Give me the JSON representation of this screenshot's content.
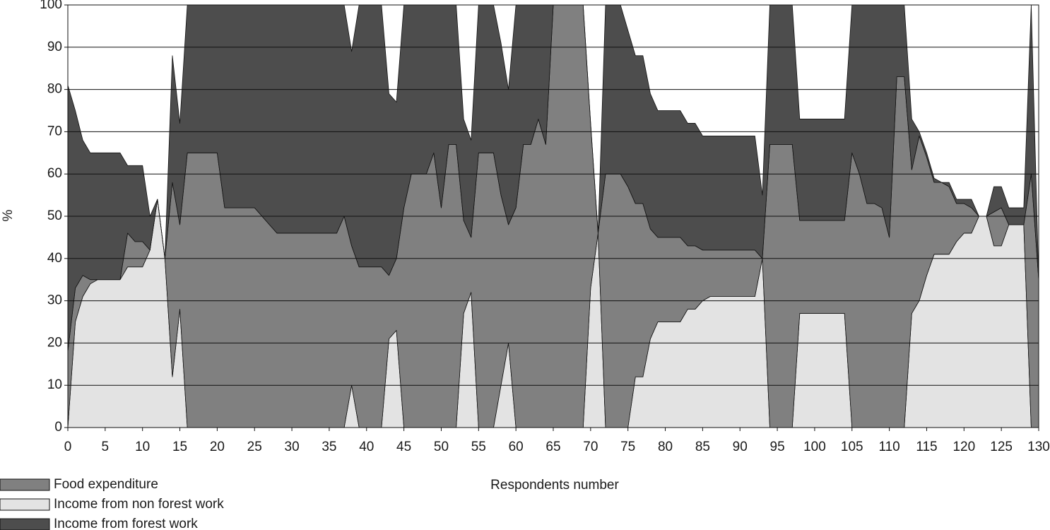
{
  "chart_data": {
    "type": "stacked_area",
    "ylabel": "%",
    "xlabel": "Respondents number",
    "x": [
      0,
      1,
      2,
      3,
      4,
      5,
      6,
      7,
      8,
      9,
      10,
      11,
      12,
      13,
      14,
      15,
      16,
      17,
      18,
      19,
      20,
      21,
      22,
      23,
      24,
      25,
      26,
      27,
      28,
      29,
      30,
      31,
      32,
      33,
      34,
      35,
      36,
      37,
      38,
      39,
      40,
      41,
      42,
      43,
      44,
      45,
      46,
      47,
      48,
      49,
      50,
      51,
      52,
      53,
      54,
      55,
      56,
      57,
      58,
      59,
      60,
      61,
      62,
      63,
      64,
      65,
      66,
      67,
      68,
      69,
      70,
      71,
      72,
      73,
      74,
      75,
      76,
      77,
      78,
      79,
      80,
      81,
      82,
      83,
      84,
      85,
      86,
      87,
      88,
      89,
      90,
      91,
      92,
      93,
      94,
      95,
      96,
      97,
      98,
      99,
      100,
      101,
      102,
      103,
      104,
      105,
      106,
      107,
      108,
      109,
      110,
      111,
      112,
      113,
      114,
      115,
      116,
      117,
      118,
      119,
      120,
      121,
      122,
      123,
      124,
      125,
      126,
      127,
      128,
      129,
      130
    ],
    "series": [
      {
        "name": "Food expenditure",
        "color": "#808080",
        "values": [
          18,
          8,
          5,
          1,
          0,
          0,
          0,
          0,
          8,
          6,
          6,
          0,
          0,
          0,
          46,
          20,
          65,
          65,
          65,
          65,
          65,
          52,
          52,
          52,
          52,
          52,
          50,
          48,
          46,
          46,
          46,
          46,
          46,
          46,
          46,
          46,
          46,
          50,
          33,
          38,
          38,
          38,
          38,
          15,
          17,
          52,
          60,
          60,
          60,
          65,
          52,
          67,
          67,
          22,
          13,
          65,
          65,
          65,
          45,
          28,
          52,
          67,
          67,
          73,
          67,
          100,
          100,
          100,
          100,
          100,
          39,
          0,
          60,
          60,
          60,
          57,
          41,
          41,
          26,
          20,
          20,
          20,
          20,
          15,
          15,
          12,
          11,
          11,
          11,
          11,
          11,
          11,
          11,
          0,
          67,
          67,
          67,
          67,
          22,
          22,
          22,
          22,
          22,
          22,
          22,
          65,
          60,
          53,
          53,
          52,
          45,
          83,
          83,
          34,
          39,
          28,
          17,
          17,
          16,
          9,
          7,
          6,
          0,
          0,
          8,
          9,
          0,
          0,
          0,
          60,
          35
        ]
      },
      {
        "name": "Income from non forest work",
        "color": "#e3e3e3",
        "values": [
          0,
          25,
          31,
          34,
          35,
          35,
          35,
          35,
          38,
          38,
          38,
          42,
          54,
          40,
          12,
          28,
          0,
          0,
          0,
          0,
          0,
          0,
          0,
          0,
          0,
          0,
          0,
          0,
          0,
          0,
          0,
          0,
          0,
          0,
          0,
          0,
          0,
          0,
          10,
          0,
          0,
          0,
          0,
          21,
          23,
          0,
          0,
          0,
          0,
          0,
          0,
          0,
          0,
          27,
          32,
          0,
          0,
          0,
          10,
          20,
          0,
          0,
          0,
          0,
          0,
          0,
          0,
          0,
          0,
          0,
          33,
          46,
          0,
          0,
          0,
          0,
          12,
          12,
          21,
          25,
          25,
          25,
          25,
          28,
          28,
          30,
          31,
          31,
          31,
          31,
          31,
          31,
          31,
          40,
          0,
          0,
          0,
          0,
          27,
          27,
          27,
          27,
          27,
          27,
          27,
          0,
          0,
          0,
          0,
          0,
          0,
          0,
          0,
          27,
          30,
          36,
          41,
          41,
          41,
          44,
          46,
          46,
          50,
          50,
          43,
          43,
          48,
          48,
          48,
          0,
          0
        ]
      },
      {
        "name": "Income from forest work",
        "color": "#4d4d4d",
        "values": [
          63,
          42,
          32,
          30,
          30,
          30,
          30,
          30,
          16,
          18,
          18,
          8,
          0,
          0,
          30,
          24,
          35,
          35,
          35,
          35,
          35,
          48,
          48,
          48,
          48,
          48,
          50,
          52,
          54,
          54,
          54,
          54,
          54,
          54,
          54,
          54,
          54,
          50,
          46,
          62,
          62,
          62,
          62,
          43,
          37,
          48,
          40,
          40,
          40,
          35,
          48,
          33,
          33,
          24,
          23,
          35,
          35,
          35,
          36,
          32,
          48,
          33,
          33,
          27,
          33,
          0,
          0,
          0,
          0,
          0,
          0,
          0,
          40,
          40,
          40,
          37,
          35,
          35,
          32,
          30,
          30,
          30,
          30,
          29,
          29,
          27,
          27,
          27,
          27,
          27,
          27,
          27,
          27,
          15,
          33,
          33,
          33,
          33,
          24,
          24,
          24,
          24,
          24,
          24,
          24,
          35,
          40,
          47,
          47,
          48,
          55,
          17,
          17,
          12,
          1,
          1,
          1,
          0,
          1,
          1,
          1,
          2,
          0,
          0,
          6,
          5,
          4,
          4,
          4,
          40,
          0
        ]
      }
    ],
    "xlim": [
      0,
      130
    ],
    "xticks": [
      0,
      5,
      10,
      15,
      20,
      25,
      30,
      35,
      40,
      45,
      50,
      55,
      60,
      65,
      70,
      75,
      80,
      85,
      90,
      95,
      100,
      105,
      110,
      115,
      120,
      125,
      130
    ],
    "ylim": [
      0,
      100
    ],
    "yticks": [
      0,
      10,
      20,
      30,
      40,
      50,
      60,
      70,
      80,
      90,
      100
    ],
    "grid": true
  }
}
